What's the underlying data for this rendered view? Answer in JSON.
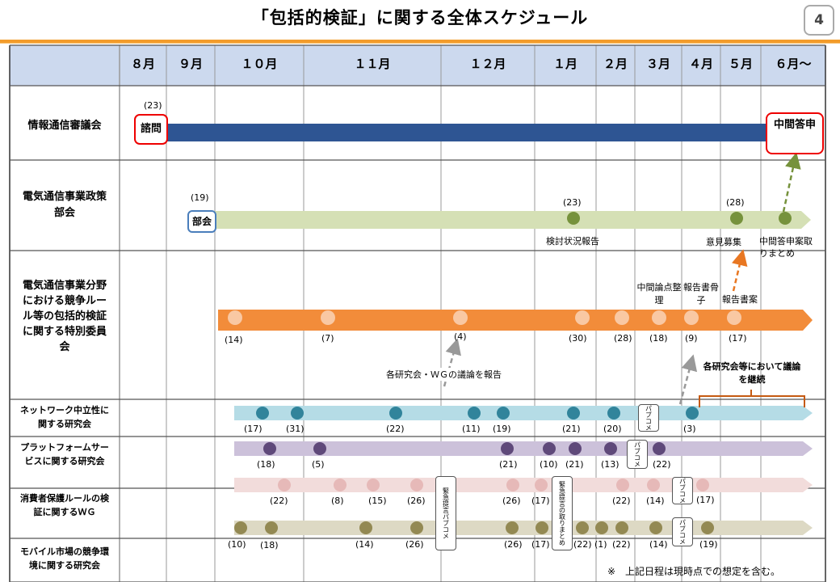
{
  "title": "「包括的検証」に関する全体スケジュール",
  "page_number": "4",
  "months": [
    "８月",
    "９月",
    "１０月",
    "１１月",
    "１２月",
    "１月",
    "２月",
    "３月",
    "４月",
    "５月",
    "６月～"
  ],
  "rows": {
    "council": "情報通信審議会",
    "policy": "電気通信事業政策部会",
    "special": "電気通信事業分野における競争ルール等の包括的検証に関する特別委員会",
    "network": "ネットワーク中立性に関する研究会",
    "platform": "プラットフォームサービスに関する研究会",
    "consumer": "消費者保護ルールの検証に関するＷＧ",
    "mobile": "モバイル市場の競争環境に関する研究会"
  },
  "labels": {
    "consult_date": "(23)",
    "consult": "諮問",
    "interim_report": "中間答申",
    "policy_start_date": "(19)",
    "policy_start": "部会",
    "policy_d1": "(23)",
    "policy_d2": "(28)",
    "study_report": "検討状況報告",
    "public_comment": "意見募集",
    "draft_summary": "中間答申案取りまとめ",
    "issues": "中間論点整理",
    "report_outline": "報告書骨子",
    "report_draft": "報告書案",
    "report_wg": "各研究会・ＷＧの議論を報告",
    "continue": "各研究会等において議論を継続",
    "public_comment_vertical": "パブコメ",
    "urgent_proposal": "緊急提言パブコメ",
    "urgent_summary": "緊急提言の取りまとめ",
    "note": "※　上記日程は現時点での想定を含む。"
  },
  "special_dates": [
    "(14)",
    "(7)",
    "(4)",
    "(30)",
    "(28)",
    "(18)",
    "(9)",
    "(17)"
  ],
  "network_dates": [
    "(17)",
    "(31)",
    "(22)",
    "(11)",
    "(19)",
    "(21)",
    "(20)",
    "(3)"
  ],
  "platform_dates": [
    "(18)",
    "(5)",
    "(21)",
    "(10)",
    "(21)",
    "(13)",
    "(22)"
  ],
  "consumer_dates": [
    "(22)",
    "(8)",
    "(15)",
    "(26)",
    "(26)",
    "(17)",
    "(22)",
    "(14)",
    "(17)"
  ],
  "mobile_dates": [
    "(10)",
    "(18)",
    "(14)",
    "(26)",
    "(26)",
    "(17)",
    "(22)",
    "(1)",
    "(22)",
    "(14)",
    "(19)"
  ],
  "colors": {
    "header_fill": "#ccd9ee",
    "council_bar": "#2e5593",
    "policy_bar": "#d5e0b5",
    "policy_dot": "#76923c",
    "special_bar": "#f28c3a",
    "special_dot": "#f9c8a3",
    "network_bar": "#b5dce6",
    "network_dot": "#31849b",
    "platform_bar": "#ccc1da",
    "platform_dot": "#5f497a",
    "consumer_bar": "#f2dcdb",
    "consumer_dot": "#e6b9b8",
    "mobile_bar": "#ddd9c4",
    "mobile_dot": "#938953",
    "accent": "#f39c2b"
  }
}
